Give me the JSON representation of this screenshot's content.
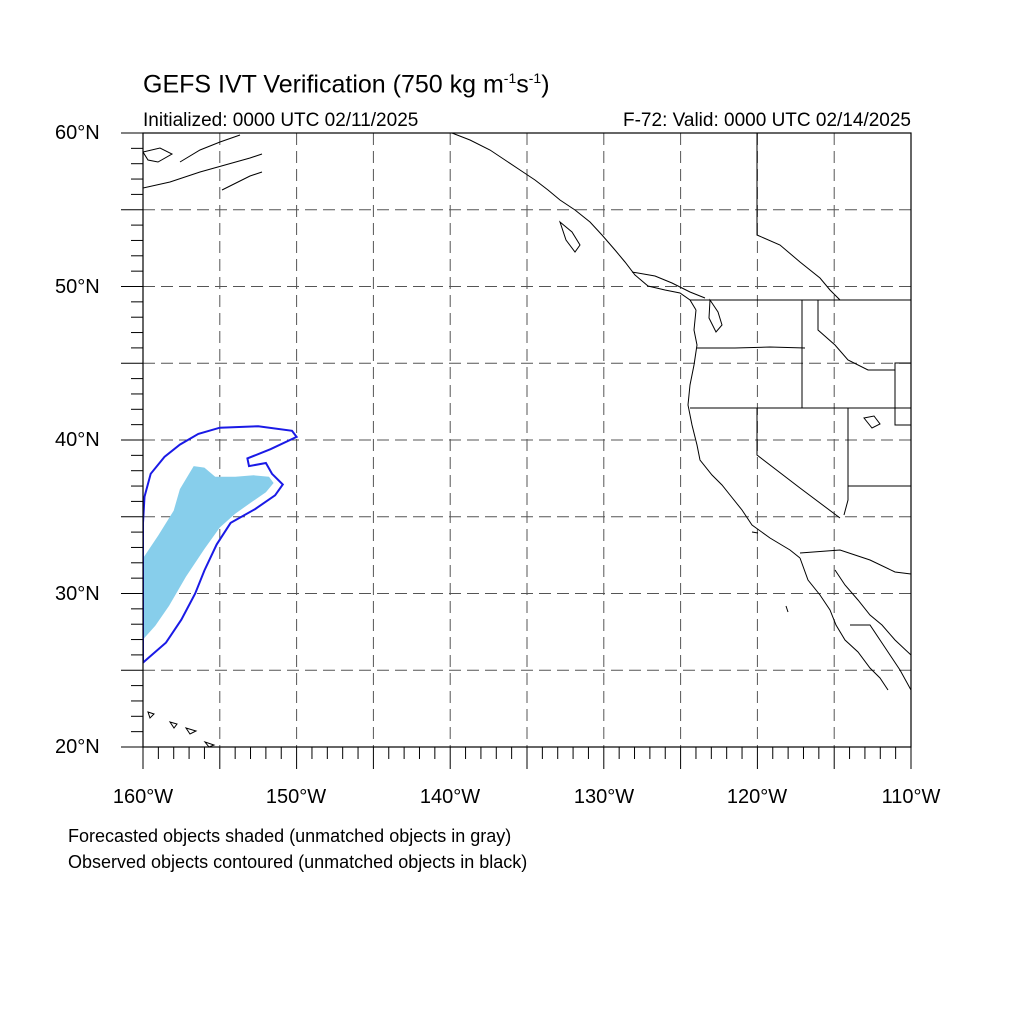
{
  "title": {
    "main": "GEFS IVT Verification (750 kg m",
    "exp1": "-1",
    "mid": "s",
    "exp2": "-1",
    "close": ")"
  },
  "subtitle_left": "Initialized: 0000 UTC 02/11/2025",
  "subtitle_right": "F-72: Valid: 0000 UTC 02/14/2025",
  "lat_labels": [
    "60°N",
    "50°N",
    "40°N",
    "30°N",
    "20°N"
  ],
  "lon_labels": [
    "160°W",
    "150°W",
    "140°W",
    "130°W",
    "120°W",
    "110°W"
  ],
  "notes": [
    "Forecasted objects shaded (unmatched objects in gray)",
    "Observed objects contoured (unmatched objects in black)"
  ],
  "map_extent": {
    "lon": [
      -160,
      -110
    ],
    "lat": [
      20,
      60
    ]
  },
  "colors": {
    "forecast_fill": "#87ceeb",
    "observed_contour": "#1a1ae6",
    "coastline": "#000000",
    "grid": "#555555"
  },
  "forecast_object": {
    "label": "forecast",
    "polygon_lonlat": [
      [
        -160.0,
        32.3
      ],
      [
        -159.0,
        33.8
      ],
      [
        -158.0,
        35.4
      ],
      [
        -157.6,
        36.8
      ],
      [
        -157.0,
        37.8
      ],
      [
        -156.7,
        38.3
      ],
      [
        -156.0,
        38.2
      ],
      [
        -155.3,
        37.6
      ],
      [
        -154.0,
        37.6
      ],
      [
        -152.8,
        37.7
      ],
      [
        -151.8,
        37.6
      ],
      [
        -151.5,
        37.2
      ],
      [
        -152.0,
        36.6
      ],
      [
        -153.0,
        35.9
      ],
      [
        -154.0,
        35.2
      ],
      [
        -155.0,
        34.3
      ],
      [
        -156.0,
        32.9
      ],
      [
        -157.2,
        31.1
      ],
      [
        -158.3,
        29.2
      ],
      [
        -159.2,
        27.9
      ],
      [
        -160.0,
        27.0
      ]
    ]
  },
  "observed_object": {
    "label": "observed",
    "polygon_lonlat": [
      [
        -160.0,
        25.5
      ],
      [
        -158.5,
        26.8
      ],
      [
        -157.5,
        28.3
      ],
      [
        -156.6,
        30.0
      ],
      [
        -156.0,
        31.5
      ],
      [
        -155.2,
        33.2
      ],
      [
        -154.3,
        34.6
      ],
      [
        -152.7,
        35.5
      ],
      [
        -151.4,
        36.4
      ],
      [
        -150.9,
        37.1
      ],
      [
        -151.6,
        37.8
      ],
      [
        -152.0,
        38.5
      ],
      [
        -153.1,
        38.3
      ],
      [
        -153.2,
        38.8
      ],
      [
        -151.7,
        39.4
      ],
      [
        -150.0,
        40.2
      ],
      [
        -150.3,
        40.6
      ],
      [
        -152.5,
        40.9
      ],
      [
        -155.0,
        40.8
      ],
      [
        -156.4,
        40.4
      ],
      [
        -157.6,
        39.7
      ],
      [
        -158.6,
        38.9
      ],
      [
        -159.5,
        37.8
      ],
      [
        -159.9,
        36.3
      ],
      [
        -160.0,
        34.6
      ],
      [
        -160.0,
        32.9
      ]
    ]
  }
}
